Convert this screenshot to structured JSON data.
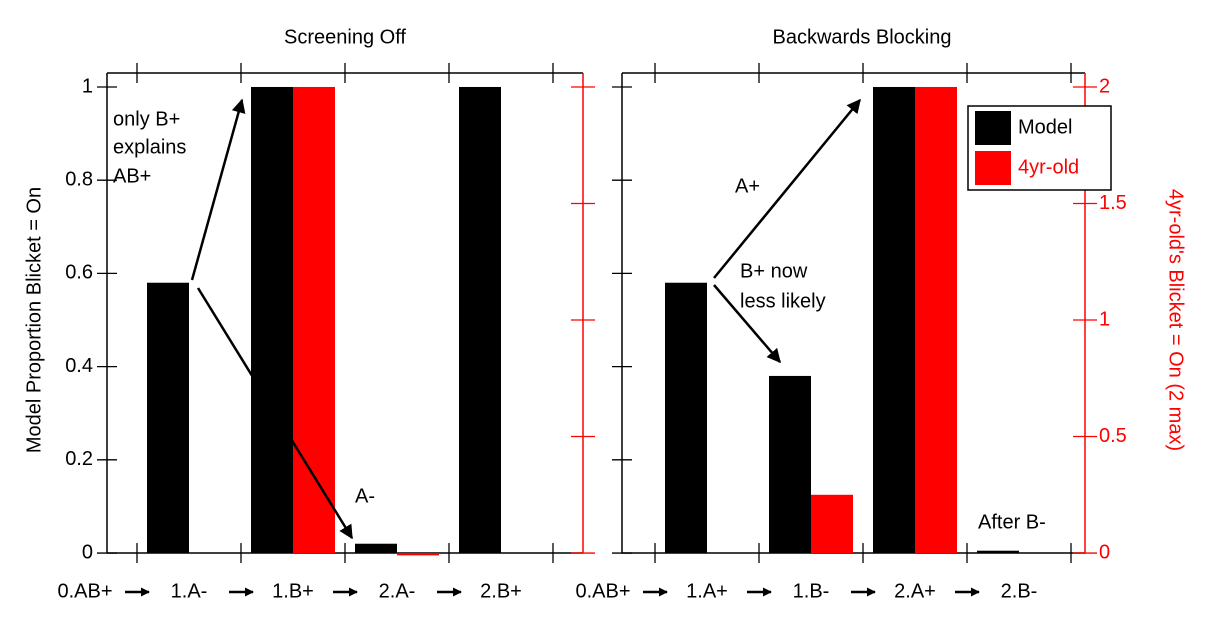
{
  "chart_data": [
    {
      "type": "bar",
      "title": "Screening Off",
      "ylabel": "Model Proportion Blicket = On",
      "categories": [
        "0.AB+",
        "1.A-",
        "1.B+",
        "2.A-",
        "2.B+"
      ],
      "series": [
        {
          "color": "#000000",
          "values": [
            null,
            0.58,
            1.0,
            0.02,
            1.0
          ]
        },
        {
          "color": "#ff0000",
          "axis": "y2",
          "values": [
            null,
            null,
            2,
            -0.01,
            null
          ]
        }
      ],
      "ylim": [
        -0.01,
        1.03
      ],
      "yticks": [
        0,
        0.2,
        0.4,
        0.6,
        0.8,
        1
      ],
      "ytick_labels": true,
      "y2lim": [
        -0.02,
        2.06
      ],
      "y2ticks": [
        0,
        0.5,
        1,
        1.5,
        2
      ],
      "y2tick_labels": false,
      "annotations": [
        [
          "only B+",
          "explains",
          "AB+"
        ],
        [
          "A-"
        ]
      ]
    },
    {
      "type": "bar",
      "title": "Backwards Blocking",
      "y2label": "4yr-old's Blicket = On (2 max)",
      "categories": [
        "0.AB+",
        "1.A+",
        "1.B-",
        "2.A+",
        "2.B-"
      ],
      "series": [
        {
          "name": "Model",
          "color": "#000000",
          "values": [
            null,
            0.58,
            0.38,
            1.0,
            0.005
          ]
        },
        {
          "name": "4yr-old",
          "color": "#ff0000",
          "axis": "y2",
          "values": [
            null,
            null,
            0.25,
            2,
            null
          ]
        }
      ],
      "ylim": [
        -0.01,
        1.03
      ],
      "yticks": [
        0,
        0.2,
        0.4,
        0.6,
        0.8,
        1
      ],
      "ytick_labels": false,
      "y2lim": [
        -0.02,
        2.06
      ],
      "y2ticks": [
        0,
        0.5,
        1,
        1.5,
        2
      ],
      "y2tick_labels": true,
      "legend": "upper right",
      "annotations": [
        [
          "A+"
        ],
        [
          "B+ now",
          "less likely"
        ],
        [
          "After B-"
        ]
      ]
    }
  ]
}
